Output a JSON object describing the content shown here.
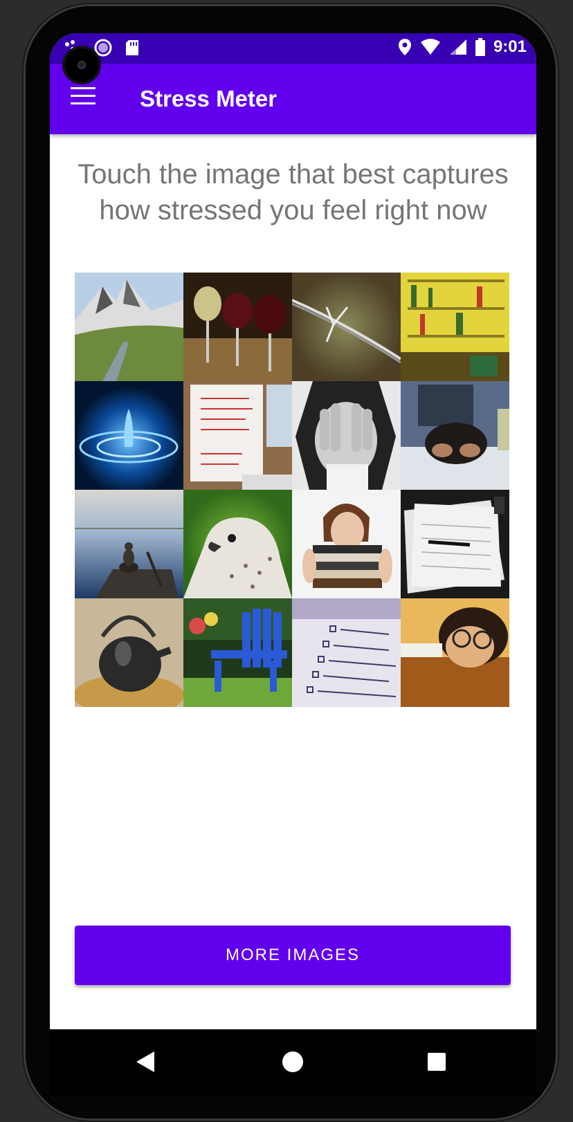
{
  "status_bar": {
    "time": "9:01",
    "icons": [
      "notification-dots-icon",
      "circle-app-icon",
      "sd-card-icon",
      "location-icon",
      "wifi-icon",
      "signal-icon",
      "battery-icon"
    ]
  },
  "app_bar": {
    "title": "Stress Meter",
    "menu_icon": "hamburger-menu-icon",
    "color": "#6200ee",
    "status_color": "#3700b3"
  },
  "prompt": "Touch the image that best captures how stressed you feel right now",
  "grid": {
    "images": [
      "mountain-valley-image",
      "wine-glasses-image",
      "barbed-wire-image",
      "messy-bookshelf-image",
      "water-drop-image",
      "todo-list-notebook-image",
      "hands-over-face-image",
      "stressed-in-bed-image",
      "meditating-on-dock-image",
      "falcon-image",
      "woman-with-books-image",
      "paper-pile-image",
      "teapot-image",
      "blue-chair-image",
      "handwritten-list-image",
      "sleeping-on-desk-image"
    ]
  },
  "more_button": {
    "label": "MORE IMAGES"
  },
  "nav_bar": {
    "icons": [
      "back-icon",
      "home-icon",
      "recents-icon"
    ]
  }
}
